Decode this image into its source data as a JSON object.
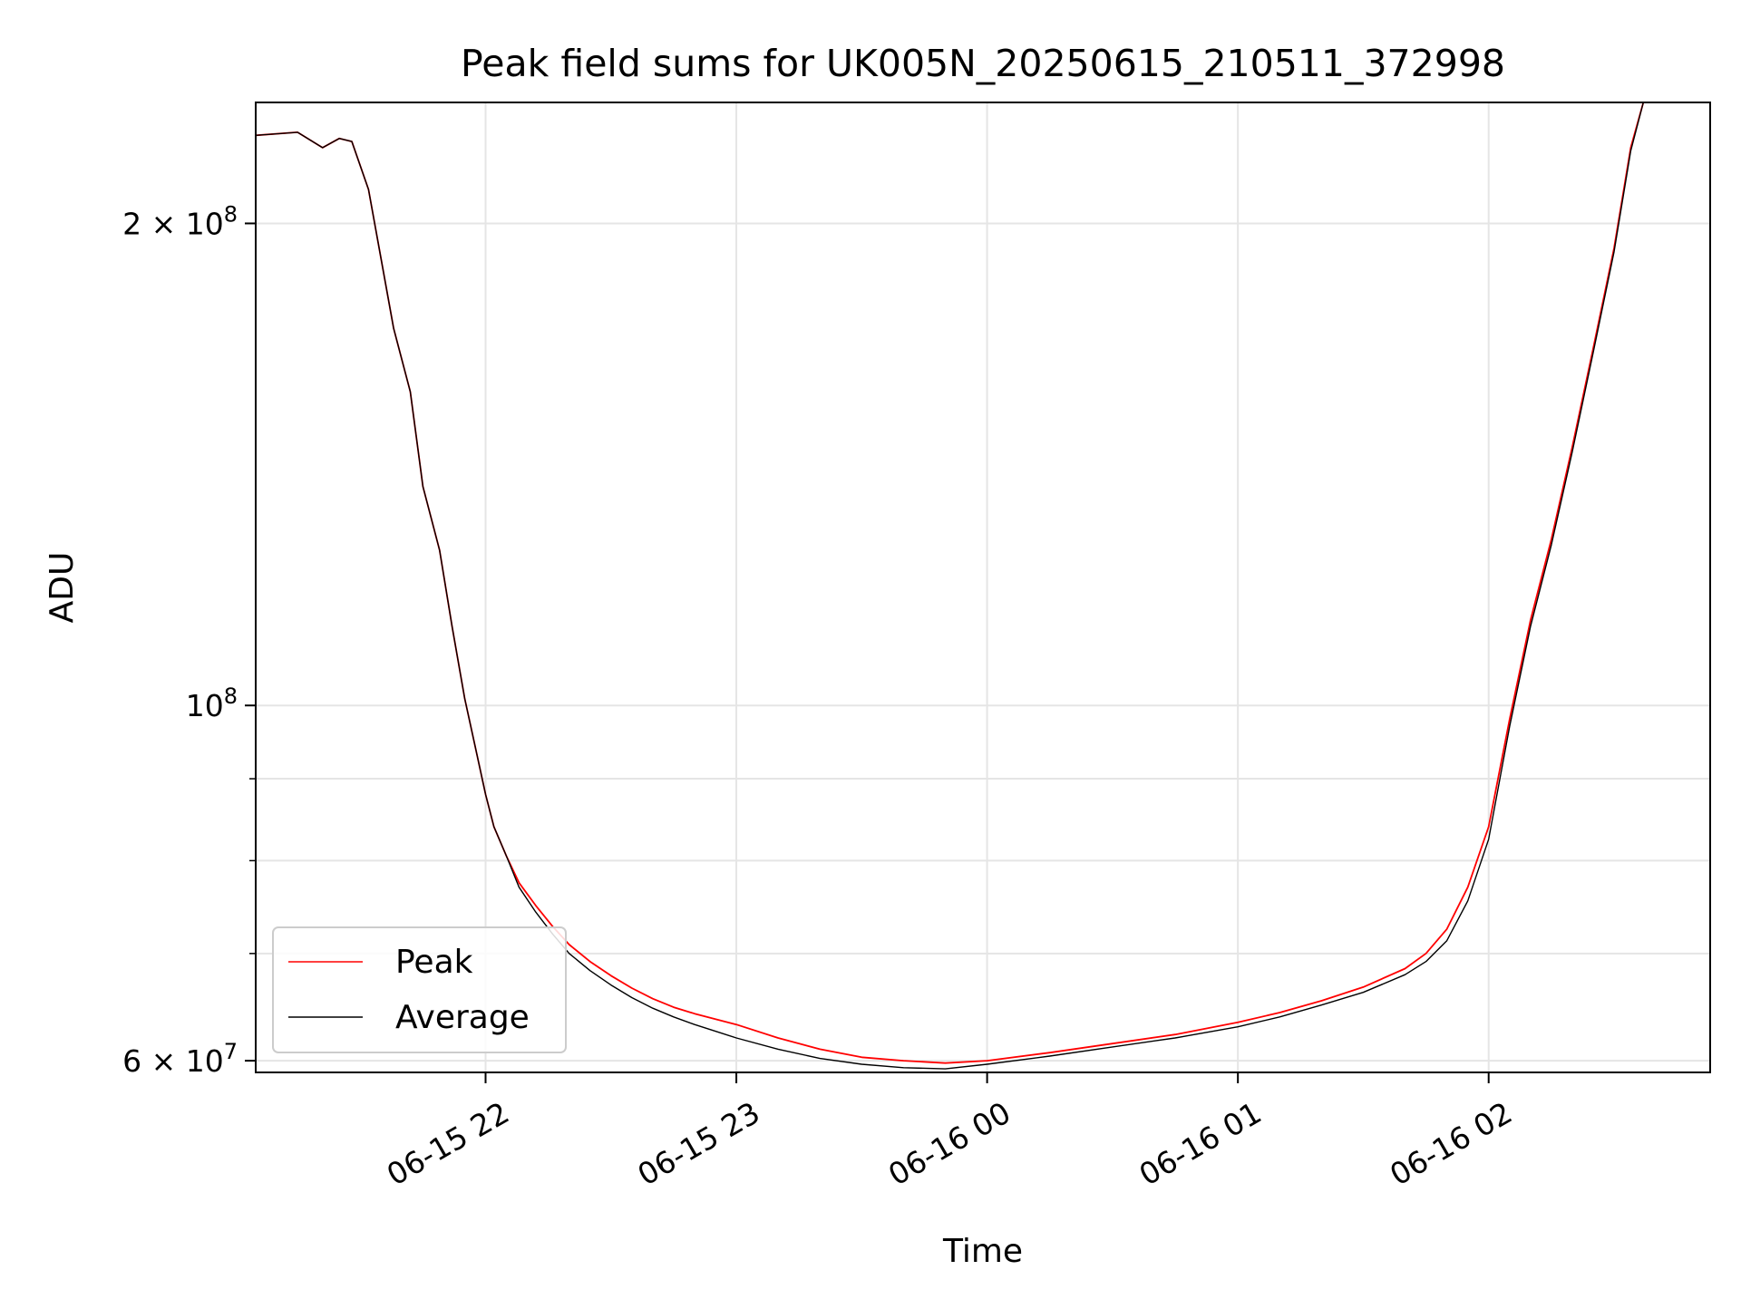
{
  "chart_data": {
    "type": "line",
    "title": "Peak field sums for UK005N_20250615_210511_372998",
    "xlabel": "Time",
    "ylabel": "ADU",
    "yscale": "log",
    "xlim": [
      "2025-06-15 21:05",
      "2025-06-16 02:53"
    ],
    "ylim": [
      59000000,
      238000000
    ],
    "grid": true,
    "legend_position": "lower-left",
    "x_ticks": [
      {
        "value": "2025-06-15 22:00",
        "label": "06-15 22"
      },
      {
        "value": "2025-06-15 23:00",
        "label": "06-15 23"
      },
      {
        "value": "2025-06-16 00:00",
        "label": "06-16 00"
      },
      {
        "value": "2025-06-16 01:00",
        "label": "06-16 01"
      },
      {
        "value": "2025-06-16 02:00",
        "label": "06-16 02"
      }
    ],
    "y_major_ticks": [
      {
        "value": 60000000,
        "base": "6 × 10",
        "exp": "7"
      },
      {
        "value": 100000000,
        "base": "10",
        "exp": "8"
      },
      {
        "value": 200000000,
        "base": "2 × 10",
        "exp": "8"
      }
    ],
    "y_minor_ticks": [
      70000000,
      80000000,
      90000000
    ],
    "x": [
      "2025-06-15 21:05",
      "2025-06-15 21:15",
      "2025-06-15 21:21",
      "2025-06-15 21:25",
      "2025-06-15 21:28",
      "2025-06-15 21:32",
      "2025-06-15 21:35",
      "2025-06-15 21:38",
      "2025-06-15 21:42",
      "2025-06-15 21:45",
      "2025-06-15 21:49",
      "2025-06-15 21:52",
      "2025-06-15 21:55",
      "2025-06-15 21:58",
      "2025-06-15 22:00",
      "2025-06-15 22:02",
      "2025-06-15 22:05",
      "2025-06-15 22:08",
      "2025-06-15 22:12",
      "2025-06-15 22:16",
      "2025-06-15 22:20",
      "2025-06-15 22:25",
      "2025-06-15 22:30",
      "2025-06-15 22:35",
      "2025-06-15 22:40",
      "2025-06-15 22:45",
      "2025-06-15 22:50",
      "2025-06-15 22:55",
      "2025-06-15 23:00",
      "2025-06-15 23:10",
      "2025-06-15 23:20",
      "2025-06-15 23:30",
      "2025-06-15 23:40",
      "2025-06-15 23:50",
      "2025-06-16 00:00",
      "2025-06-16 00:15",
      "2025-06-16 00:30",
      "2025-06-16 00:45",
      "2025-06-16 01:00",
      "2025-06-16 01:10",
      "2025-06-16 01:20",
      "2025-06-16 01:30",
      "2025-06-16 01:40",
      "2025-06-16 01:45",
      "2025-06-16 01:50",
      "2025-06-16 01:55",
      "2025-06-16 02:00",
      "2025-06-16 02:05",
      "2025-06-16 02:10",
      "2025-06-16 02:15",
      "2025-06-16 02:20",
      "2025-06-16 02:25",
      "2025-06-16 02:30",
      "2025-06-16 02:34",
      "2025-06-16 02:37"
    ],
    "series": [
      {
        "name": "Peak",
        "color": "#ff0000",
        "values": [
          227000000,
          228000000,
          223000000,
          226000000,
          225000000,
          210000000,
          190000000,
          172000000,
          157000000,
          137000000,
          125000000,
          112000000,
          101000000,
          93000000,
          88000000,
          84000000,
          80500000,
          77500000,
          75000000,
          72800000,
          70900000,
          69200000,
          67800000,
          66600000,
          65600000,
          64800000,
          64200000,
          63700000,
          63200000,
          62000000,
          61000000,
          60300000,
          60000000,
          59800000,
          60000000,
          60700000,
          61500000,
          62300000,
          63400000,
          64300000,
          65400000,
          66700000,
          68500000,
          70000000,
          72500000,
          77000000,
          84000000,
          98000000,
          113000000,
          127000000,
          145000000,
          167000000,
          193000000,
          223000000,
          238000000
        ]
      },
      {
        "name": "Average",
        "color": "#000000",
        "values": [
          227000000,
          228000000,
          223000000,
          226000000,
          225000000,
          210000000,
          190000000,
          172000000,
          157000000,
          137000000,
          125000000,
          112000000,
          101000000,
          93000000,
          88000000,
          84000000,
          80500000,
          77000000,
          74300000,
          72000000,
          70000000,
          68300000,
          66900000,
          65700000,
          64700000,
          63900000,
          63200000,
          62600000,
          62000000,
          61000000,
          60200000,
          59700000,
          59400000,
          59300000,
          59700000,
          60400000,
          61200000,
          62000000,
          63000000,
          63900000,
          65000000,
          66200000,
          67900000,
          69200000,
          71300000,
          75500000,
          82500000,
          97000000,
          112000000,
          126000000,
          144000000,
          166000000,
          192000000,
          222000000,
          238000000
        ]
      }
    ]
  }
}
